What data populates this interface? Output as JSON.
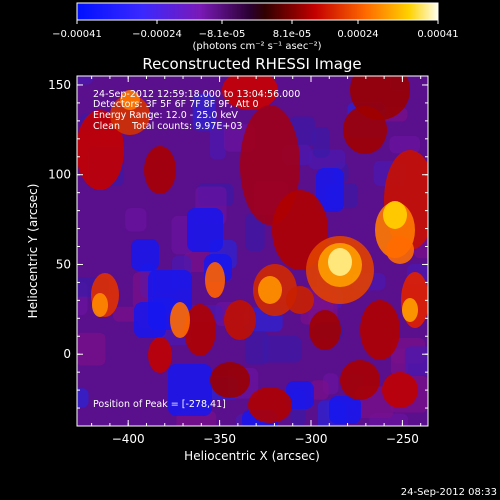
{
  "chart_data": {
    "type": "heatmap",
    "title": "Reconstructed RHESSI Image",
    "xlabel": "Heliocentric X (arcsec)",
    "ylabel": "Heliocentric Y (arcsec)",
    "xlim": [
      -428,
      -236
    ],
    "ylim": [
      -40,
      155
    ],
    "xticks": [
      -400,
      -350,
      -300,
      -250
    ],
    "yticks": [
      0,
      50,
      100,
      150
    ],
    "colorbar": {
      "ticks": [
        "-0.00041",
        "-0.00024",
        "-8.1e-05",
        "8.1e-05",
        "0.00024",
        "0.00041"
      ],
      "unit_label": "(photons cm⁻² s⁻¹ asec⁻²)",
      "range": [
        -0.00041,
        0.00041
      ]
    },
    "annotations": [
      "24-Sep-2012 12:59:18.000 to 13:04:56.000",
      "Detectors: 3F 5F 6F 7F 8F 9F, Att 0",
      "Energy Range: 12.0 - 25.0 keV",
      "Clean    Total counts: 9.97E+03"
    ],
    "peak_label": "Position of Peak = [-278,41]",
    "peak": {
      "x": -278,
      "y": 41
    }
  },
  "footer_timestamp": "24-Sep-2012 08:33"
}
